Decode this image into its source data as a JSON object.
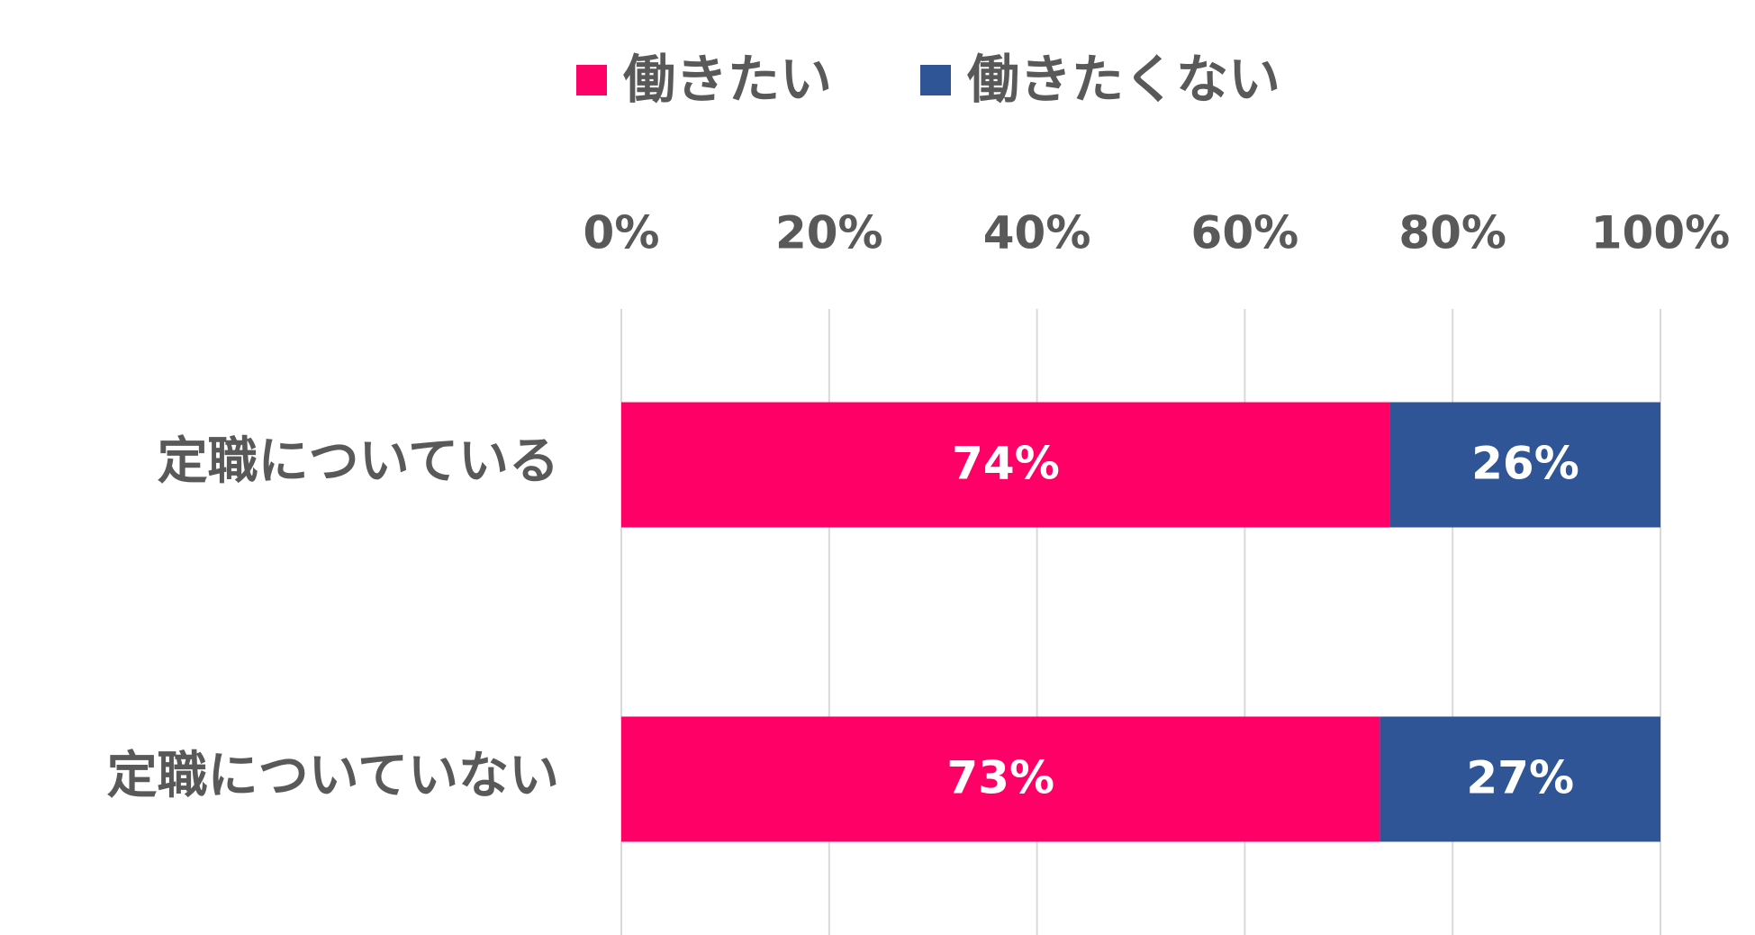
{
  "chart_data": {
    "type": "stacked_bar_horizontal",
    "categories": [
      "定職についている",
      "定職についていない"
    ],
    "series": [
      {
        "name": "働きたい",
        "color": "#ff0066",
        "values": [
          74,
          73
        ],
        "value_labels": [
          "74%",
          "73%"
        ]
      },
      {
        "name": "働きたくない",
        "color": "#2f5597",
        "values": [
          26,
          27
        ],
        "value_labels": [
          "26%",
          "27%"
        ]
      }
    ],
    "xlim": [
      0,
      100
    ],
    "xticks": [
      {
        "value": 0,
        "label": "0%"
      },
      {
        "value": 20,
        "label": "20%"
      },
      {
        "value": 40,
        "label": "40%"
      },
      {
        "value": 60,
        "label": "60%"
      },
      {
        "value": 80,
        "label": "80%"
      },
      {
        "value": 100,
        "label": "100%"
      }
    ],
    "grid": true,
    "legend": "top"
  }
}
